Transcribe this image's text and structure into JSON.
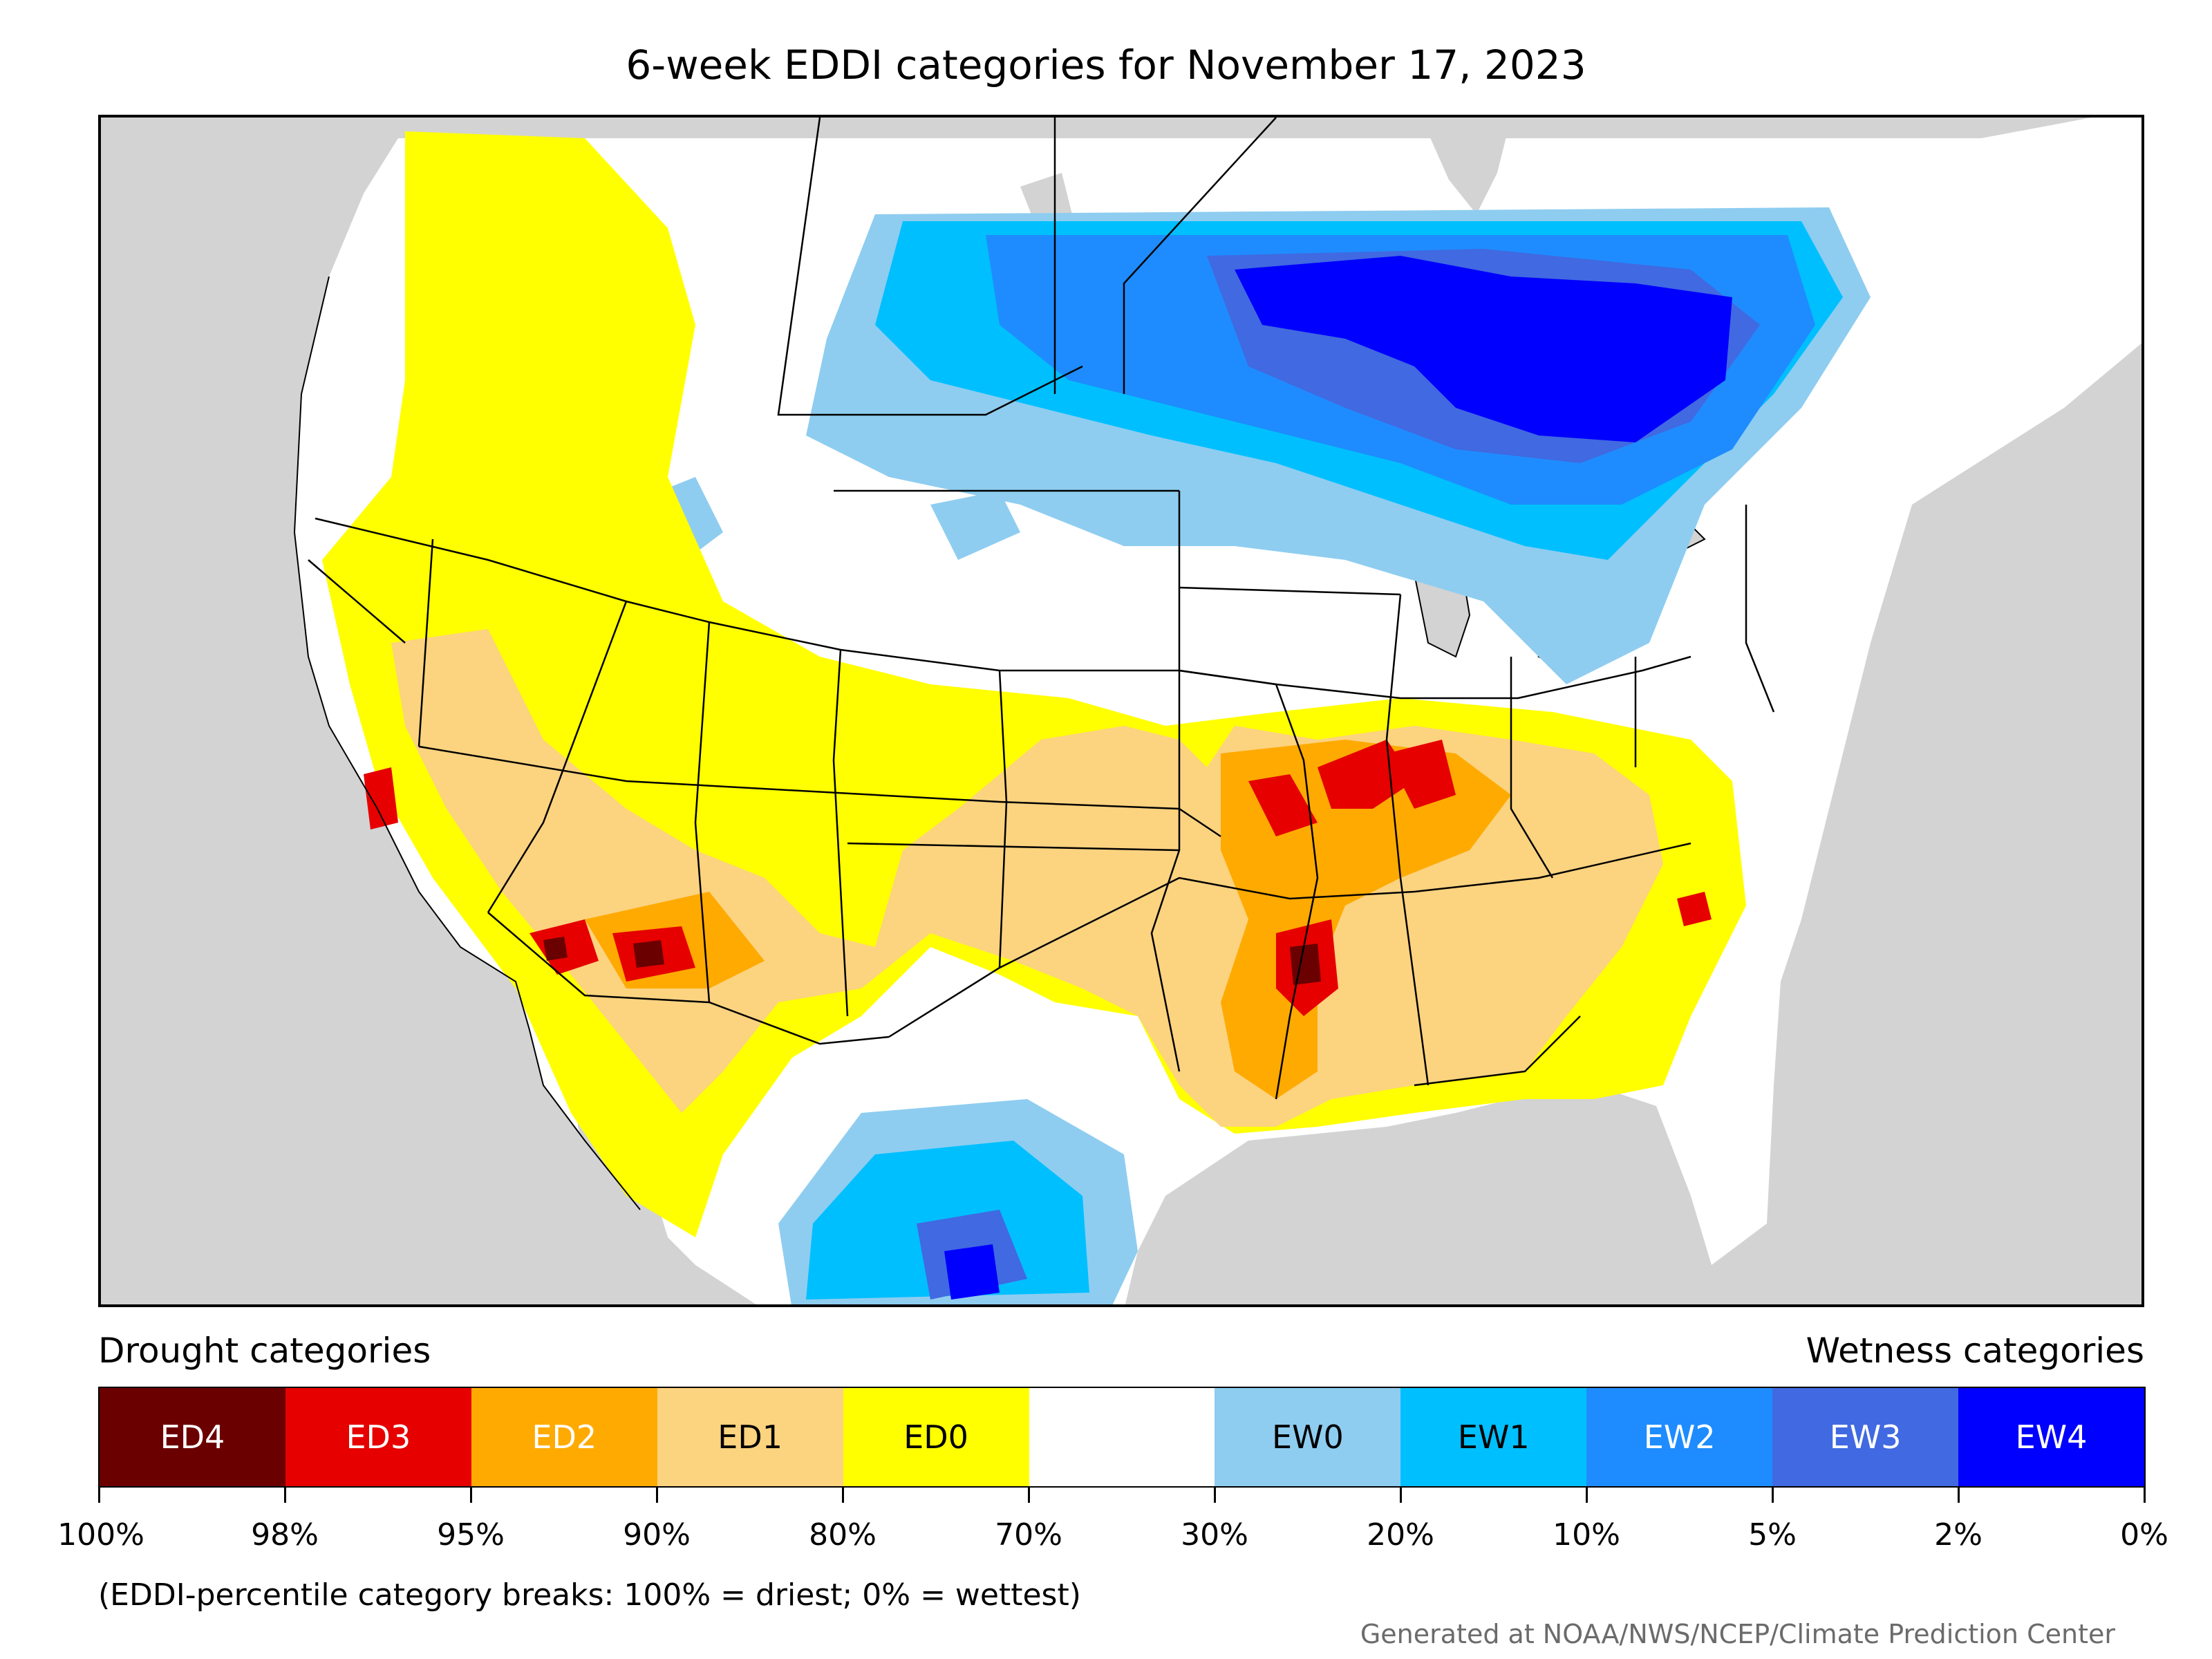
{
  "title": "6-week EDDI categories for November 17, 2023",
  "legend": {
    "drought_heading": "Drought categories",
    "wetness_heading": "Wetness categories",
    "categories": [
      {
        "label": "ED4",
        "color": "#6b0000",
        "text_color": "#ffffff"
      },
      {
        "label": "ED3",
        "color": "#e60000",
        "text_color": "#ffffff"
      },
      {
        "label": "ED2",
        "color": "#ffaa00",
        "text_color": "#ffffff"
      },
      {
        "label": "ED1",
        "color": "#fcd37f",
        "text_color": "#000000"
      },
      {
        "label": "ED0",
        "color": "#ffff00",
        "text_color": "#000000"
      },
      {
        "label": "",
        "color": "#ffffff",
        "text_color": "#000000"
      },
      {
        "label": "EW0",
        "color": "#8ecdf0",
        "text_color": "#000000"
      },
      {
        "label": "EW1",
        "color": "#00bfff",
        "text_color": "#000000"
      },
      {
        "label": "EW2",
        "color": "#1e8cff",
        "text_color": "#ffffff"
      },
      {
        "label": "EW3",
        "color": "#4169e1",
        "text_color": "#ffffff"
      },
      {
        "label": "EW4",
        "color": "#0000ff",
        "text_color": "#ffffff"
      }
    ],
    "breaks": [
      "100%",
      "98%",
      "95%",
      "90%",
      "80%",
      "70%",
      "30%",
      "20%",
      "10%",
      "5%",
      "2%",
      "0%"
    ]
  },
  "note": "(EDDI-percentile category breaks: 100% = driest; 0% = wettest)",
  "credit": "Generated at NOAA/NWS/NCEP/Climate Prediction Center"
}
